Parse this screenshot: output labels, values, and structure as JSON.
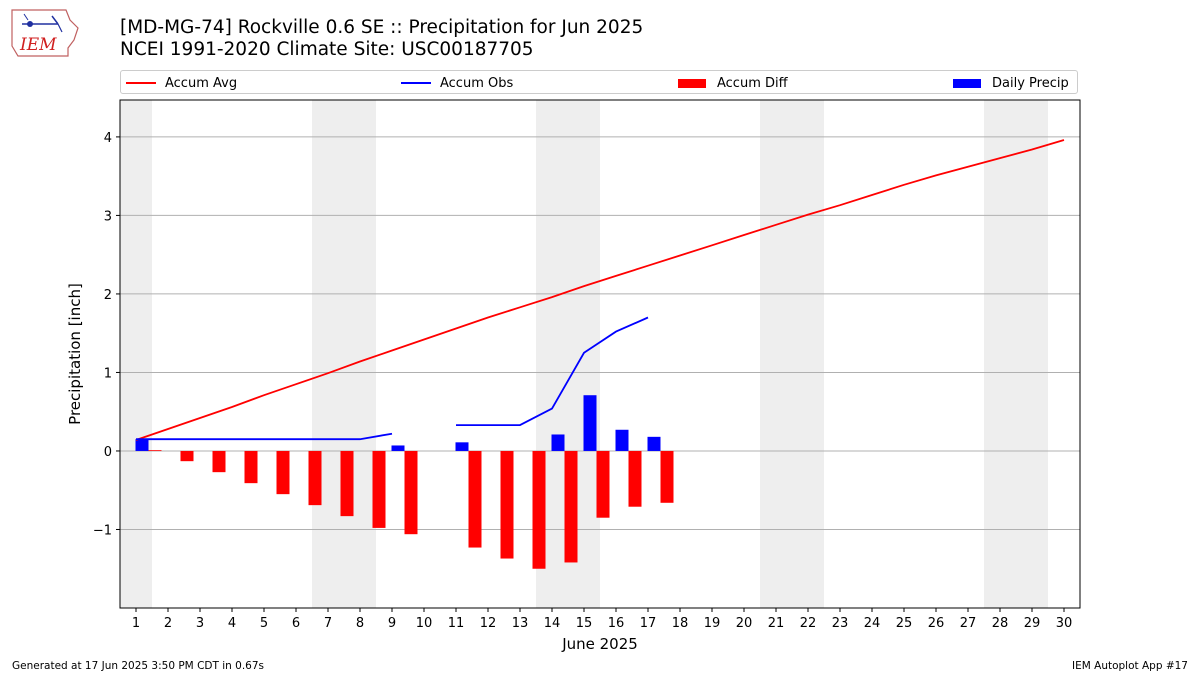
{
  "logo": {
    "text": "IEM"
  },
  "title": {
    "line1": "[MD-MG-74] Rockville 0.6 SE :: Precipitation for Jun 2025",
    "line2": "NCEI 1991-2020 Climate Site: USC00187705"
  },
  "legend": {
    "accum_avg": "Accum Avg",
    "accum_obs": "Accum Obs",
    "accum_diff": "Accum Diff",
    "daily_precip": "Daily Precip"
  },
  "colors": {
    "avg": "#ff0000",
    "obs": "#0000ff",
    "diff": "#ff0000",
    "daily": "#0000ff",
    "weekend_band": "#eeeeee",
    "grid": "#b0b0b0"
  },
  "footer": {
    "left": "Generated at 17 Jun 2025 3:50 PM CDT in 0.67s",
    "right": "IEM Autoplot App #17"
  },
  "chart_data": {
    "type": "bar",
    "xlabel": "June 2025",
    "ylabel": "Precipitation [inch]",
    "ylim": [
      -2.0,
      4.47
    ],
    "xlim": [
      0.5,
      30.5
    ],
    "yticks": [
      -1,
      0,
      1,
      2,
      3,
      4
    ],
    "ytick_labels": [
      "−1",
      "0",
      "1",
      "2",
      "3",
      "4"
    ],
    "days": [
      1,
      2,
      3,
      4,
      5,
      6,
      7,
      8,
      9,
      10,
      11,
      12,
      13,
      14,
      15,
      16,
      17,
      18,
      19,
      20,
      21,
      22,
      23,
      24,
      25,
      26,
      27,
      28,
      29,
      30
    ],
    "grid": "horizontal",
    "weekend_bands": [
      [
        0.5,
        1.5
      ],
      [
        6.5,
        8.5
      ],
      [
        13.5,
        15.5
      ],
      [
        20.5,
        22.5
      ],
      [
        27.5,
        29.5
      ]
    ],
    "series": [
      {
        "name": "Accum Avg",
        "type": "line",
        "x": [
          1,
          2,
          3,
          4,
          5,
          6,
          7,
          8,
          9,
          10,
          11,
          12,
          13,
          14,
          15,
          16,
          17,
          18,
          19,
          20,
          21,
          22,
          23,
          24,
          25,
          26,
          27,
          28,
          29,
          30
        ],
        "values": [
          0.14,
          0.28,
          0.42,
          0.56,
          0.71,
          0.85,
          0.99,
          1.14,
          1.28,
          1.42,
          1.56,
          1.7,
          1.83,
          1.96,
          2.1,
          2.23,
          2.36,
          2.49,
          2.62,
          2.75,
          2.88,
          3.01,
          3.13,
          3.26,
          3.39,
          3.51,
          3.62,
          3.73,
          3.84,
          3.96
        ]
      },
      {
        "name": "Accum Obs",
        "type": "line",
        "x": [
          1,
          2,
          3,
          4,
          5,
          6,
          7,
          8,
          9,
          10,
          11,
          12,
          13,
          14,
          15,
          16,
          17
        ],
        "values": [
          0.15,
          0.15,
          0.15,
          0.15,
          0.15,
          0.15,
          0.15,
          0.15,
          0.22,
          null,
          0.33,
          0.33,
          0.33,
          0.54,
          1.25,
          1.52,
          1.7
        ]
      },
      {
        "name": "Accum Diff",
        "type": "bar",
        "x": [
          1,
          2,
          3,
          4,
          5,
          6,
          7,
          8,
          9,
          10,
          11,
          12,
          13,
          14,
          15,
          16,
          17
        ],
        "values": [
          0.01,
          -0.13,
          -0.27,
          -0.41,
          -0.55,
          -0.69,
          -0.83,
          -0.98,
          -1.06,
          null,
          -1.23,
          -1.37,
          -1.5,
          -1.42,
          -0.85,
          -0.71,
          -0.66
        ]
      },
      {
        "name": "Daily Precip",
        "type": "bar",
        "x": [
          1,
          2,
          3,
          4,
          5,
          6,
          7,
          8,
          9,
          10,
          11,
          12,
          13,
          14,
          15,
          16,
          17
        ],
        "values": [
          0.15,
          0,
          0,
          0,
          0,
          0,
          0,
          0,
          0.07,
          0,
          0.11,
          0,
          0,
          0.21,
          0.71,
          0.27,
          0.18
        ]
      }
    ]
  }
}
